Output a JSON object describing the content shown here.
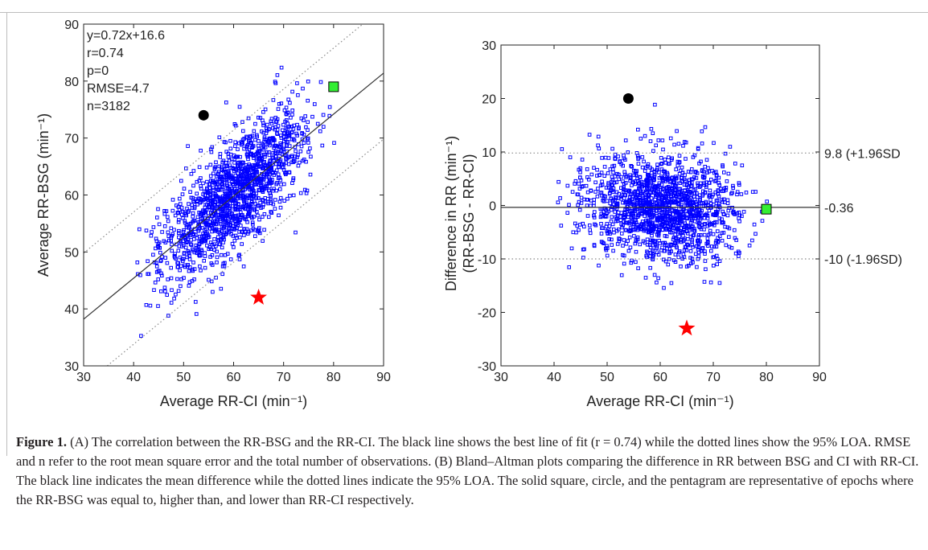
{
  "figure": {
    "caption": {
      "label": "Figure 1.",
      "text": "(A) The correlation between the RR-BSG and the RR-CI. The black line shows the best line of fit (r = 0.74) while the dotted lines show the 95% LOA. RMSE and n refer to the root mean square error and the total number of observations. (B) Bland–Altman plots comparing the difference in RR between BSG and CI with RR-CI. The black line indicates the mean difference while the dotted lines indicate the 95% LOA. The solid square, circle, and the pentagram are representative of epochs where the RR-BSG was equal to, higher than, and lower than RR-CI respectively."
    }
  },
  "colors": {
    "scatter": "#0000ff",
    "square": "#33ee33",
    "circle": "#000000",
    "star": "#ff0000",
    "line": "#333333",
    "dotted": "#888888"
  },
  "chart_data": [
    {
      "type": "scatter",
      "title": "",
      "xlabel": "Average RR-CI (min⁻¹)",
      "ylabel": "Average RR-BSG (min⁻¹)",
      "xlim": [
        30,
        90
      ],
      "ylim": [
        30,
        90
      ],
      "xticks": [
        30,
        40,
        50,
        60,
        70,
        80,
        90
      ],
      "yticks": [
        30,
        40,
        50,
        60,
        70,
        80,
        90
      ],
      "grid": false,
      "annotations": [
        "y=0.72x+16.6",
        "r=0.74",
        "p=0",
        "RMSE=4.7",
        "n=3182"
      ],
      "fit_line": {
        "slope": 0.72,
        "intercept": 16.6
      },
      "loa_lines": [
        {
          "slope": 0.72,
          "intercept": 28.2
        },
        {
          "slope": 0.72,
          "intercept": 5.0
        }
      ],
      "points_description": "3182 epochs, approx. elliptical cloud centered near (60, 59)",
      "markers": {
        "square": {
          "x": 80,
          "y": 79
        },
        "circle": {
          "x": 54,
          "y": 74
        },
        "star": {
          "x": 65,
          "y": 42
        }
      }
    },
    {
      "type": "scatter",
      "title": "",
      "xlabel": "Average RR-CI (min⁻¹)",
      "ylabel": "Difference in RR (min⁻¹)",
      "ylabel2": "(RR-BSG - RR-CI)",
      "xlim": [
        30,
        90
      ],
      "ylim": [
        -30,
        30
      ],
      "xticks": [
        30,
        40,
        50,
        60,
        70,
        80,
        90
      ],
      "yticks": [
        -30,
        -20,
        -10,
        0,
        10,
        20,
        30
      ],
      "grid": false,
      "mean_line": {
        "y": -0.36,
        "label": "-0.36"
      },
      "loa_lines": [
        {
          "y": 9.8,
          "label": "9.8 (+1.96SD"
        },
        {
          "y": -10,
          "label": "-10 (-1.96SD)"
        }
      ],
      "points_description": "3182 epochs, cloud centered near (60, 0)",
      "markers": {
        "square": {
          "x": 80,
          "y": -0.7
        },
        "circle": {
          "x": 54,
          "y": 20
        },
        "star": {
          "x": 65,
          "y": -23
        }
      }
    }
  ]
}
